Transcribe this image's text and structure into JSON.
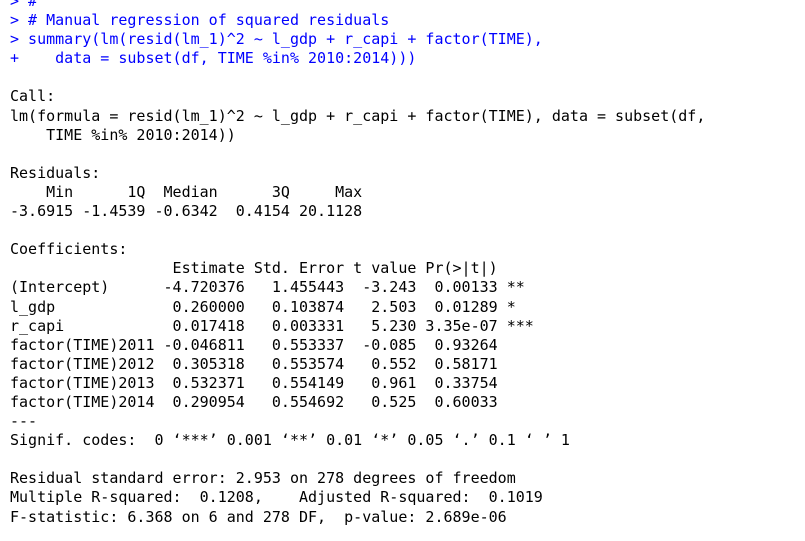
{
  "colors": {
    "input": "#0000ff",
    "output": "#000000",
    "background": "#ffffff"
  },
  "console": {
    "input_lines": [
      "> #",
      "> # Manual regression of squared residuals",
      "> summary(lm(resid(lm_1)^2 ~ l_gdp + r_capi + factor(TIME),",
      "+    data = subset(df, TIME %in% 2010:2014)))"
    ],
    "call": {
      "header": "Call:",
      "line1": "lm(formula = resid(lm_1)^2 ~ l_gdp + r_capi + factor(TIME), data = subset(df,",
      "line2": "    TIME %in% 2010:2014))"
    },
    "residuals": {
      "header": "Residuals:",
      "labels": "    Min      1Q  Median      3Q     Max ",
      "values": "-3.6915 -1.4539 -0.6342  0.4154 20.1128 "
    },
    "coefficients": {
      "header": "Coefficients:",
      "column_header": "                  Estimate Std. Error t value Pr(>|t|)    ",
      "rows": [
        "(Intercept)      -4.720376   1.455443  -3.243  0.00133 ** ",
        "l_gdp             0.260000   0.103874   2.503  0.01289 *  ",
        "r_capi            0.017418   0.003331   5.230 3.35e-07 ***",
        "factor(TIME)2011 -0.046811   0.553337  -0.085  0.93264    ",
        "factor(TIME)2012  0.305318   0.553574   0.552  0.58171    ",
        "factor(TIME)2013  0.532371   0.554149   0.961  0.33754    ",
        "factor(TIME)2014  0.290954   0.554692   0.525  0.60033    "
      ],
      "separator": "---",
      "signif_codes": "Signif. codes:  0 ‘***’ 0.001 ‘**’ 0.01 ‘*’ 0.05 ‘.’ 0.1 ‘ ’ 1"
    },
    "summary_stats": [
      "Residual standard error: 2.953 on 278 degrees of freedom",
      "Multiple R-squared:  0.1208,\tAdjusted R-squared:  0.1019 ",
      "F-statistic: 6.368 on 6 and 278 DF,  p-value: 2.689e-06"
    ]
  }
}
